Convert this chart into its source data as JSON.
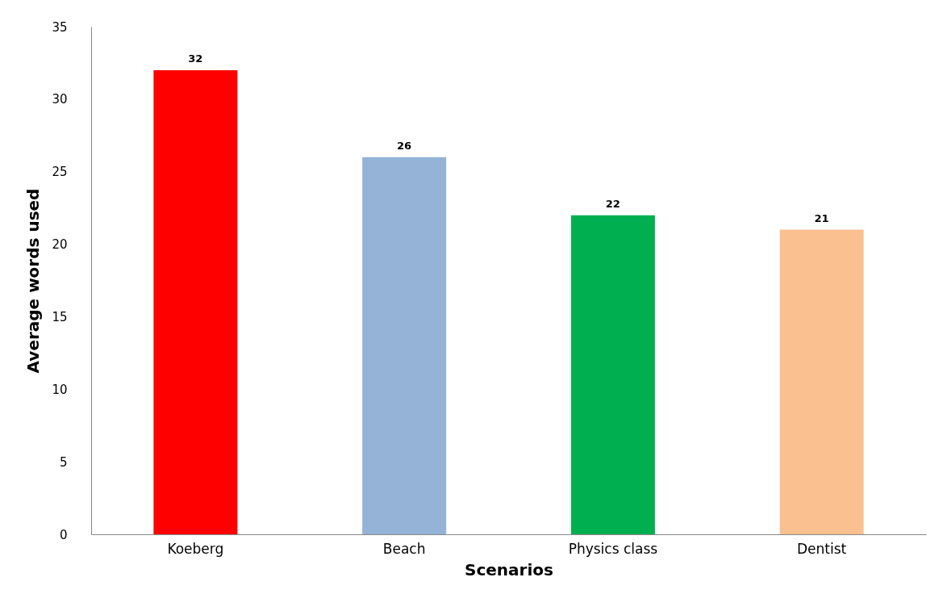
{
  "chart_data": {
    "type": "bar",
    "xlabel": "Scenarios",
    "ylabel": "Average words used",
    "categories": [
      "Koeberg",
      "Beach",
      "Physics class",
      "Dentist"
    ],
    "values": [
      32,
      26,
      22,
      21
    ],
    "colors": [
      "#ff0000",
      "#95b3d7",
      "#00b050",
      "#fac090"
    ],
    "ylim": [
      0,
      35
    ],
    "yticks": [
      0,
      5,
      10,
      15,
      20,
      25,
      30,
      35
    ],
    "grid": false,
    "data_labels": true
  }
}
